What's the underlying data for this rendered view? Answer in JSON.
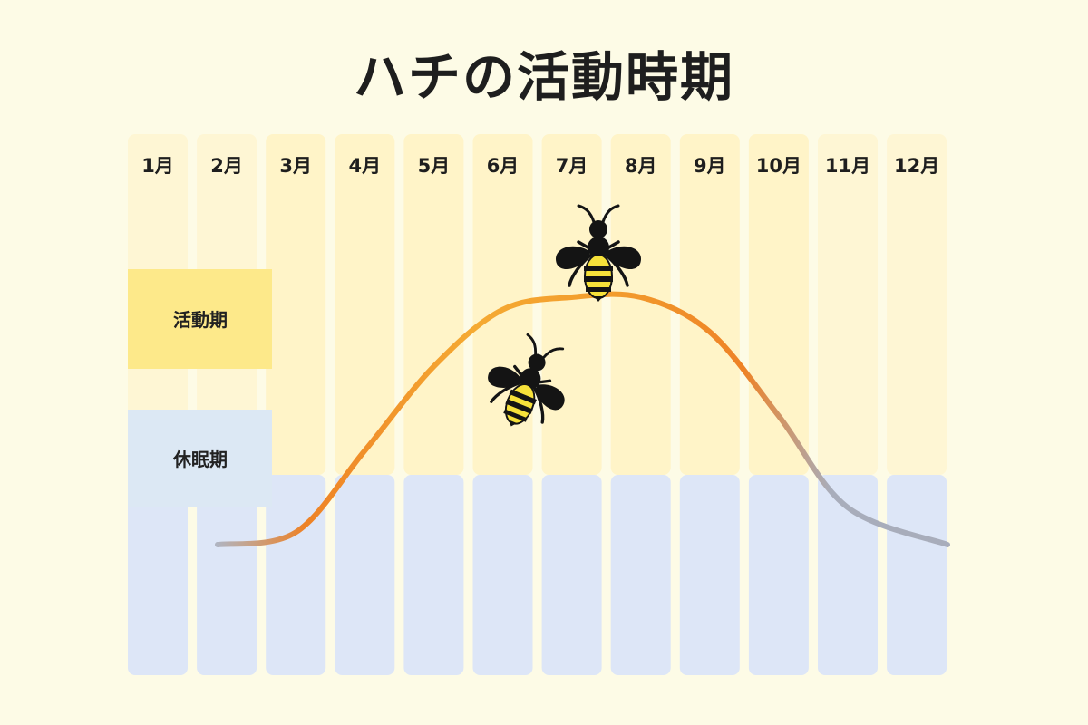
{
  "title": "ハチの活動時期",
  "chart_data": {
    "type": "line",
    "title": "ハチの活動時期",
    "categories": [
      "1月",
      "2月",
      "3月",
      "4月",
      "5月",
      "6月",
      "7月",
      "8月",
      "9月",
      "10月",
      "11月",
      "12月"
    ],
    "band_labels": {
      "active": "活動期",
      "dormant": "休眠期"
    },
    "activity_shading": [
      "dormant",
      "dormant",
      "active",
      "active",
      "active",
      "active",
      "active",
      "active",
      "active",
      "active",
      "dormant",
      "dormant"
    ],
    "curve": {
      "x": [
        "2月",
        "3月",
        "4月",
        "5月",
        "6月",
        "7月",
        "8月",
        "9月",
        "10月",
        "11月",
        "12月"
      ],
      "y": [
        0.0,
        0.05,
        0.38,
        0.72,
        0.95,
        1.0,
        1.0,
        0.86,
        0.52,
        0.15,
        0.0
      ]
    },
    "icons": [
      "bee-icon",
      "bee-icon"
    ],
    "colors": {
      "background": "#fdfbe6",
      "active_band": "#fff3c4",
      "active_label_bg": "#fde98a",
      "dormant_band": "#dde6f7",
      "dormant_label_bg": "#dce8f4",
      "curve_warm": "#f0a030",
      "curve_hot": "#ee8226",
      "curve_cold": "#b0b4c0"
    }
  }
}
